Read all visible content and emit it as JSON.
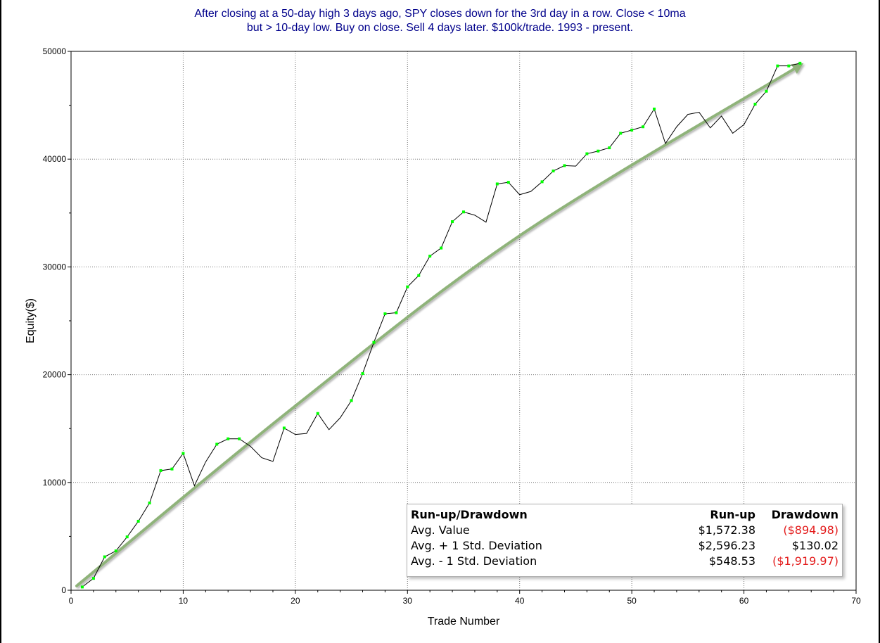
{
  "title": {
    "line1": "After closing at a 50-day high 3 days ago, SPY closes down for the 3rd day in a row. Close < 10ma",
    "line2": "but > 10-day low. Buy on close. Sell 4 days later. $100k/trade. 1993 - present."
  },
  "chart_data": {
    "type": "line",
    "title": "After closing at a 50-day high 3 days ago, SPY closes down for the 3rd day in a row. Close < 10ma but > 10-day low. Buy on close. Sell 4 days later. $100k/trade. 1993 - present.",
    "xlabel": "Trade Number",
    "ylabel": "Equity($)",
    "xlim": [
      0,
      70
    ],
    "ylim": [
      0,
      50000
    ],
    "x_ticks": [
      0,
      10,
      20,
      30,
      40,
      50,
      60,
      70
    ],
    "y_ticks": [
      0,
      10000,
      20000,
      30000,
      40000,
      50000
    ],
    "grid": true,
    "series": [
      {
        "color": "#000000",
        "marker_color": "#00ff00",
        "points": [
          {
            "x": 1,
            "y": 300,
            "new_high": true
          },
          {
            "x": 2,
            "y": 1100,
            "new_high": true
          },
          {
            "x": 3,
            "y": 3100,
            "new_high": true
          },
          {
            "x": 4,
            "y": 3650,
            "new_high": true
          },
          {
            "x": 5,
            "y": 4950,
            "new_high": true
          },
          {
            "x": 6,
            "y": 6400,
            "new_high": true
          },
          {
            "x": 7,
            "y": 8100,
            "new_high": true
          },
          {
            "x": 8,
            "y": 11100,
            "new_high": true
          },
          {
            "x": 9,
            "y": 11250,
            "new_high": true
          },
          {
            "x": 10,
            "y": 12700,
            "new_high": true
          },
          {
            "x": 11,
            "y": 9700,
            "new_high": false
          },
          {
            "x": 12,
            "y": 11900,
            "new_high": false
          },
          {
            "x": 13,
            "y": 13550,
            "new_high": true
          },
          {
            "x": 14,
            "y": 14050,
            "new_high": true
          },
          {
            "x": 15,
            "y": 14050,
            "new_high": true
          },
          {
            "x": 16,
            "y": 13350,
            "new_high": false
          },
          {
            "x": 17,
            "y": 12300,
            "new_high": false
          },
          {
            "x": 18,
            "y": 11950,
            "new_high": false
          },
          {
            "x": 19,
            "y": 15050,
            "new_high": true
          },
          {
            "x": 20,
            "y": 14450,
            "new_high": false
          },
          {
            "x": 21,
            "y": 14550,
            "new_high": false
          },
          {
            "x": 22,
            "y": 16400,
            "new_high": true
          },
          {
            "x": 23,
            "y": 14900,
            "new_high": false
          },
          {
            "x": 24,
            "y": 16000,
            "new_high": false
          },
          {
            "x": 25,
            "y": 17600,
            "new_high": true
          },
          {
            "x": 26,
            "y": 20100,
            "new_high": true
          },
          {
            "x": 27,
            "y": 23000,
            "new_high": true
          },
          {
            "x": 28,
            "y": 25650,
            "new_high": true
          },
          {
            "x": 29,
            "y": 25750,
            "new_high": true
          },
          {
            "x": 30,
            "y": 28150,
            "new_high": true
          },
          {
            "x": 31,
            "y": 29200,
            "new_high": true
          },
          {
            "x": 32,
            "y": 31000,
            "new_high": true
          },
          {
            "x": 33,
            "y": 31750,
            "new_high": true
          },
          {
            "x": 34,
            "y": 34200,
            "new_high": true
          },
          {
            "x": 35,
            "y": 35100,
            "new_high": true
          },
          {
            "x": 36,
            "y": 34800,
            "new_high": false
          },
          {
            "x": 37,
            "y": 34150,
            "new_high": false
          },
          {
            "x": 38,
            "y": 37700,
            "new_high": true
          },
          {
            "x": 39,
            "y": 37850,
            "new_high": true
          },
          {
            "x": 40,
            "y": 36700,
            "new_high": false
          },
          {
            "x": 41,
            "y": 37000,
            "new_high": false
          },
          {
            "x": 42,
            "y": 37900,
            "new_high": true
          },
          {
            "x": 43,
            "y": 38900,
            "new_high": true
          },
          {
            "x": 44,
            "y": 39400,
            "new_high": true
          },
          {
            "x": 45,
            "y": 39350,
            "new_high": false
          },
          {
            "x": 46,
            "y": 40500,
            "new_high": true
          },
          {
            "x": 47,
            "y": 40750,
            "new_high": true
          },
          {
            "x": 48,
            "y": 41050,
            "new_high": true
          },
          {
            "x": 49,
            "y": 42400,
            "new_high": true
          },
          {
            "x": 50,
            "y": 42700,
            "new_high": true
          },
          {
            "x": 51,
            "y": 43000,
            "new_high": true
          },
          {
            "x": 52,
            "y": 44650,
            "new_high": true
          },
          {
            "x": 53,
            "y": 41450,
            "new_high": false
          },
          {
            "x": 54,
            "y": 43000,
            "new_high": false
          },
          {
            "x": 55,
            "y": 44150,
            "new_high": false
          },
          {
            "x": 56,
            "y": 44350,
            "new_high": false
          },
          {
            "x": 57,
            "y": 42900,
            "new_high": false
          },
          {
            "x": 58,
            "y": 44000,
            "new_high": false
          },
          {
            "x": 59,
            "y": 42400,
            "new_high": false
          },
          {
            "x": 60,
            "y": 43200,
            "new_high": false
          },
          {
            "x": 61,
            "y": 45100,
            "new_high": true
          },
          {
            "x": 62,
            "y": 46300,
            "new_high": true
          },
          {
            "x": 63,
            "y": 48650,
            "new_high": true
          },
          {
            "x": 64,
            "y": 48650,
            "new_high": true
          },
          {
            "x": 65,
            "y": 48900,
            "new_high": true
          }
        ]
      }
    ],
    "trend_arrow": {
      "color": "#8fb37a",
      "points": [
        {
          "x": 0.5,
          "y": 400
        },
        {
          "x": 20,
          "y": 17100
        },
        {
          "x": 40,
          "y": 32900
        },
        {
          "x": 65,
          "y": 48700
        }
      ]
    },
    "stats_table": {
      "position": "bottom-right",
      "headers": [
        "Run-up/Drawdown",
        "Run-up",
        "Drawdown"
      ],
      "rows": [
        {
          "label": "Avg. Value",
          "runup": "$1,572.38",
          "drawdown": "($894.98)",
          "drawdown_negative": true
        },
        {
          "label": "Avg. + 1 Std. Deviation",
          "runup": "$2,596.23",
          "drawdown": "$130.02",
          "drawdown_negative": false
        },
        {
          "label": "Avg. - 1 Std. Deviation",
          "runup": "$548.53",
          "drawdown": "($1,919.97)",
          "drawdown_negative": true
        }
      ],
      "negative_color": "#e31b1b"
    }
  }
}
